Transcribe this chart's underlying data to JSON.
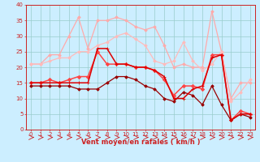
{
  "xlabel": "Vent moyen/en rafales ( km/h )",
  "xlim": [
    -0.5,
    23.5
  ],
  "ylim": [
    0,
    40
  ],
  "xticks": [
    0,
    1,
    2,
    3,
    4,
    5,
    6,
    7,
    8,
    9,
    10,
    11,
    12,
    13,
    14,
    15,
    16,
    17,
    18,
    19,
    20,
    21,
    22,
    23
  ],
  "yticks": [
    0,
    5,
    10,
    15,
    20,
    25,
    30,
    35,
    40
  ],
  "bg_color": "#cceeff",
  "grid_color": "#99cccc",
  "series": [
    {
      "x": [
        0,
        1,
        2,
        3,
        4,
        5,
        6,
        7,
        8,
        9,
        10,
        11,
        12,
        13,
        14,
        15,
        16,
        17,
        18,
        19,
        20,
        21,
        22,
        23
      ],
      "y": [
        21,
        21,
        24,
        24,
        30,
        36,
        26,
        35,
        35,
        36,
        35,
        33,
        32,
        33,
        27,
        20,
        21,
        20,
        20,
        38,
        25,
        10,
        15,
        15
      ],
      "color": "#ffaaaa",
      "lw": 0.9,
      "marker": "D",
      "ms": 1.8,
      "zorder": 2,
      "ls": "-"
    },
    {
      "x": [
        0,
        1,
        2,
        3,
        4,
        5,
        6,
        7,
        8,
        9,
        10,
        11,
        12,
        13,
        14,
        15,
        16,
        17,
        18,
        19,
        20,
        21,
        22,
        23
      ],
      "y": [
        21,
        21,
        22,
        23,
        23,
        25,
        25,
        27,
        28,
        30,
        31,
        29,
        27,
        22,
        21,
        22,
        28,
        22,
        19,
        21,
        25,
        9,
        12,
        16
      ],
      "color": "#ffbbbb",
      "lw": 0.9,
      "marker": "D",
      "ms": 1.8,
      "zorder": 2,
      "ls": "-"
    },
    {
      "x": [
        0,
        1,
        2,
        3,
        4,
        5,
        6,
        7,
        8,
        9,
        10,
        11,
        12,
        13,
        14,
        15,
        16,
        17,
        18,
        19,
        20,
        21,
        22,
        23
      ],
      "y": [
        15,
        15,
        16,
        15,
        16,
        17,
        17,
        25,
        21,
        21,
        21,
        20,
        20,
        19,
        16,
        11,
        14,
        14,
        13,
        24,
        24,
        3,
        6,
        5
      ],
      "color": "#ff4444",
      "lw": 1.1,
      "marker": "D",
      "ms": 2.2,
      "zorder": 3,
      "ls": "-"
    },
    {
      "x": [
        0,
        1,
        2,
        3,
        4,
        5,
        6,
        7,
        8,
        9,
        10,
        11,
        12,
        13,
        14,
        15,
        16,
        17,
        18,
        19,
        20,
        21,
        22,
        23
      ],
      "y": [
        15,
        15,
        15,
        15,
        15,
        15,
        15,
        26,
        26,
        21,
        21,
        20,
        20,
        19,
        17,
        10,
        10,
        13,
        14,
        23,
        24,
        3,
        5,
        5
      ],
      "color": "#dd0000",
      "lw": 1.1,
      "marker": "+",
      "ms": 3.5,
      "zorder": 4,
      "ls": "-"
    },
    {
      "x": [
        0,
        1,
        2,
        3,
        4,
        5,
        6,
        7,
        8,
        9,
        10,
        11,
        12,
        13,
        14,
        15,
        16,
        17,
        18,
        19,
        20,
        21,
        22,
        23
      ],
      "y": [
        14,
        14,
        14,
        14,
        14,
        13,
        13,
        13,
        15,
        17,
        17,
        16,
        14,
        13,
        10,
        9,
        12,
        11,
        8,
        14,
        8,
        3,
        5,
        4
      ],
      "color": "#990000",
      "lw": 0.9,
      "marker": "D",
      "ms": 1.8,
      "zorder": 3,
      "ls": "-"
    }
  ],
  "arrow_color": "#cc2222",
  "axis_fontsize": 6,
  "tick_fontsize": 5
}
